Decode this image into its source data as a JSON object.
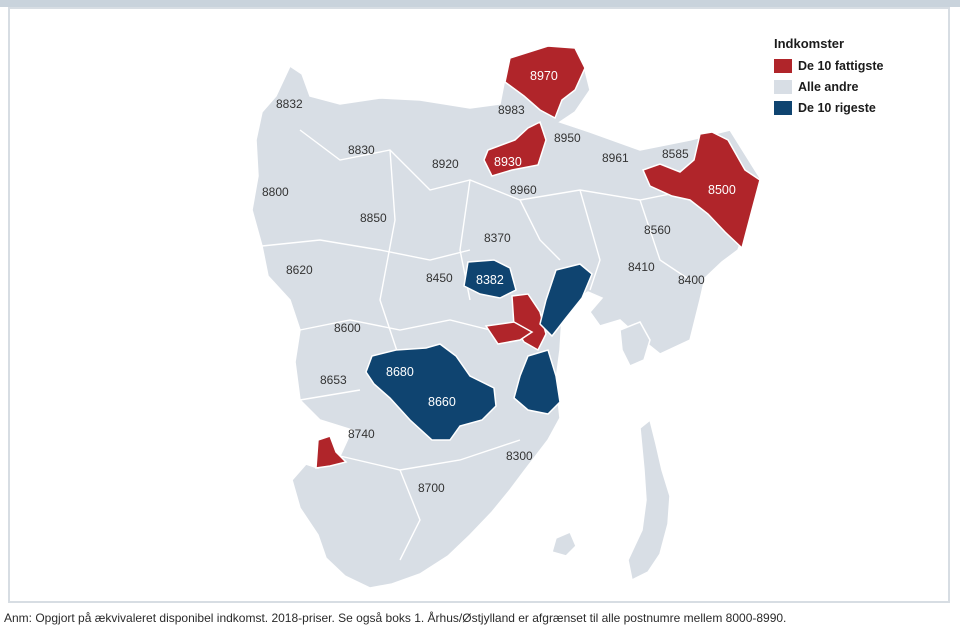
{
  "legend": {
    "title": "Indkomster",
    "items": [
      {
        "label": "De 10 fattigste",
        "color": "#b0252a"
      },
      {
        "label": "Alle andre",
        "color": "#d8dee5"
      },
      {
        "label": "De 10 rigeste",
        "color": "#0f4470"
      }
    ]
  },
  "postcodes": {
    "p8832": "8832",
    "p8830": "8830",
    "p8800": "8800",
    "p8850": "8850",
    "p8620": "8620",
    "p8600": "8600",
    "p8653": "8653",
    "p8740": "8740",
    "p8700": "8700",
    "p8300": "8300",
    "p8920": "8920",
    "p8983": "8983",
    "p8950": "8950",
    "p8961": "8961",
    "p8585": "8585",
    "p8960": "8960",
    "p8370": "8370",
    "p8560": "8560",
    "p8450": "8450",
    "p8410": "8410",
    "p8400": "8400",
    "p8970": "8970",
    "p8930": "8930",
    "p8500": "8500",
    "p8382": "8382",
    "p8680": "8680",
    "p8660": "8660"
  },
  "colors": {
    "poorest": "#b0252a",
    "others": "#d8dee5",
    "richest": "#0f4470",
    "border": "#ffffff"
  },
  "caption": "Anm: Opgjort på ækvivaleret disponibel indkomst. 2018-priser. Se også boks 1. Århus/Østjylland er afgrænset til alle postnumre mellem 8000-8990."
}
